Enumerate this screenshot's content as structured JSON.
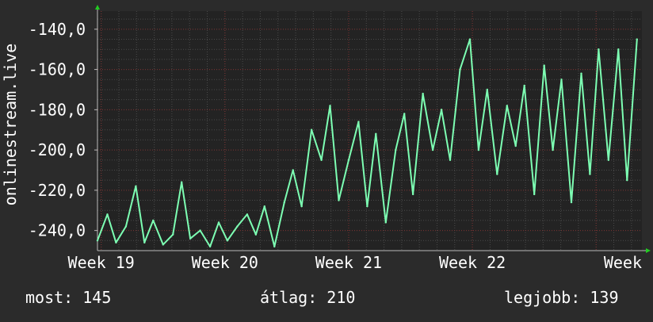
{
  "colors": {
    "background": "#2b2b2b",
    "plot_background": "#232323",
    "grid_minor": "#4a4a4a",
    "grid_major": "#7a2f2f",
    "line": "#7dffb3",
    "text": "#ffffff",
    "axis_arrow": "#22cc22"
  },
  "legend": {
    "current": "most: 145",
    "average": "átlag: 210",
    "best": "legjobb: 139"
  },
  "chart_data": {
    "type": "line",
    "ylabel": "onlinestream.live",
    "y_ticks": [
      -140,
      -160,
      -180,
      -200,
      -220,
      -240
    ],
    "y_tick_labels": [
      "-140,0",
      "-160,0",
      "-180,0",
      "-200,0",
      "-220,0",
      "-240,0"
    ],
    "ylim": [
      -250,
      -131
    ],
    "x_tick_labels": [
      "Week 19",
      "Week 20",
      "Week 21",
      "Week 22",
      "Week"
    ],
    "x_ticks": [
      19,
      20,
      21,
      22,
      23
    ],
    "xlim": [
      18.97,
      23.37
    ],
    "grid": true,
    "series": [
      {
        "x": [
          18.97,
          19.05,
          19.12,
          19.2,
          19.28,
          19.35,
          19.42,
          19.5,
          19.58,
          19.65,
          19.72,
          19.8,
          19.88,
          19.95,
          20.02,
          20.1,
          20.18,
          20.25,
          20.32,
          20.4,
          20.48,
          20.55,
          20.62,
          20.7,
          20.78,
          20.85,
          20.92,
          21.0,
          21.08,
          21.15,
          21.22,
          21.3,
          21.38,
          21.45,
          21.52,
          21.6,
          21.68,
          21.75,
          21.82,
          21.9,
          21.98,
          22.05,
          22.12,
          22.2,
          22.28,
          22.35,
          22.42,
          22.5,
          22.58,
          22.65,
          22.72,
          22.8,
          22.88,
          22.95,
          23.02,
          23.1,
          23.18,
          23.25,
          23.33
        ],
        "y": [
          -245,
          -232,
          -246,
          -238,
          -218,
          -246,
          -235,
          -247,
          -242,
          -216,
          -244,
          -240,
          -248,
          -236,
          -245,
          -238,
          -232,
          -242,
          -228,
          -248,
          -226,
          -210,
          -228,
          -190,
          -205,
          -178,
          -225,
          -205,
          -186,
          -228,
          -192,
          -236,
          -200,
          -182,
          -222,
          -172,
          -200,
          -180,
          -205,
          -160,
          -145,
          -200,
          -170,
          -212,
          -178,
          -198,
          -168,
          -222,
          -158,
          -200,
          -165,
          -226,
          -162,
          -212,
          -150,
          -205,
          -150,
          -215,
          -145
        ]
      }
    ]
  }
}
